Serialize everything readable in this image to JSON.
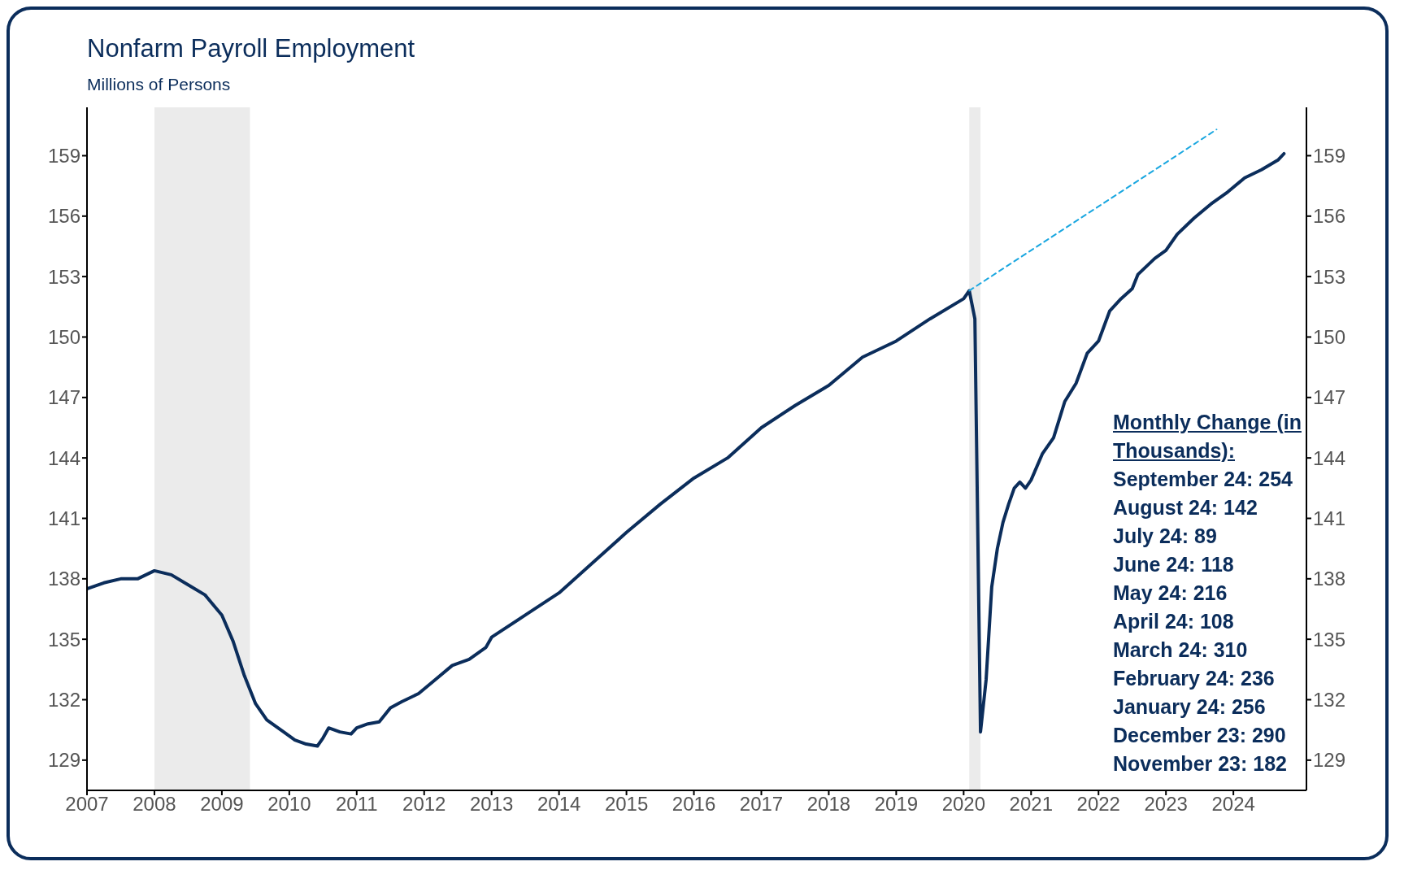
{
  "chart_data": {
    "type": "line",
    "title": "Nonfarm Payroll Employment",
    "subtitle": "Millions of Persons",
    "xlim": [
      "2007-01",
      "2025-02"
    ],
    "xticks": [
      "2007",
      "2008",
      "2009",
      "2010",
      "2011",
      "2012",
      "2013",
      "2014",
      "2015",
      "2016",
      "2017",
      "2018",
      "2019",
      "2020",
      "2021",
      "2022",
      "2023",
      "2024"
    ],
    "ylim": [
      127.5,
      161.4
    ],
    "yticks": [
      129,
      132,
      135,
      138,
      141,
      144,
      147,
      150,
      153,
      156,
      159
    ],
    "y2lim": [
      127.5,
      161.4
    ],
    "y2ticks": [
      129,
      132,
      135,
      138,
      141,
      144,
      147,
      150,
      153,
      156,
      159
    ],
    "grid": false,
    "legend": false,
    "marker": "none",
    "series": [
      {
        "color": "#0b2d5b",
        "line_style": "solid",
        "x": [
          "2007-01",
          "2007-04",
          "2007-07",
          "2007-10",
          "2008-01",
          "2008-04",
          "2008-07",
          "2008-10",
          "2009-01",
          "2009-03",
          "2009-05",
          "2009-07",
          "2009-09",
          "2009-12",
          "2010-02",
          "2010-04",
          "2010-06",
          "2010-07",
          "2010-08",
          "2010-10",
          "2010-12",
          "2011-01",
          "2011-03",
          "2011-05",
          "2011-07",
          "2011-09",
          "2011-12",
          "2012-03",
          "2012-06",
          "2012-09",
          "2012-12",
          "2013-01",
          "2013-07",
          "2014-01",
          "2014-07",
          "2015-01",
          "2015-07",
          "2016-01",
          "2016-07",
          "2017-01",
          "2017-07",
          "2018-01",
          "2018-07",
          "2019-01",
          "2019-07",
          "2020-01",
          "2020-02",
          "2020-03",
          "2020-04",
          "2020-05",
          "2020-06",
          "2020-07",
          "2020-08",
          "2020-09",
          "2020-10",
          "2020-11",
          "2020-12",
          "2021-01",
          "2021-03",
          "2021-05",
          "2021-07",
          "2021-09",
          "2021-11",
          "2022-01",
          "2022-03",
          "2022-05",
          "2022-07",
          "2022-08",
          "2022-11",
          "2023-01",
          "2023-03",
          "2023-06",
          "2023-09",
          "2023-12",
          "2024-03",
          "2024-06",
          "2024-09",
          "2024-10"
        ],
        "values": [
          137.5,
          137.8,
          138.0,
          138.0,
          138.4,
          138.2,
          137.7,
          137.2,
          136.2,
          134.9,
          133.2,
          131.8,
          131.0,
          130.4,
          130.0,
          129.8,
          129.7,
          130.1,
          130.6,
          130.4,
          130.3,
          130.6,
          130.8,
          130.9,
          131.6,
          131.9,
          132.3,
          133.0,
          133.7,
          134.0,
          134.6,
          135.1,
          136.2,
          137.3,
          138.8,
          140.3,
          141.7,
          143.0,
          144.0,
          145.5,
          146.6,
          147.6,
          149.0,
          149.8,
          150.9,
          151.9,
          152.3,
          150.9,
          130.4,
          133.0,
          137.6,
          139.5,
          140.8,
          141.7,
          142.5,
          142.8,
          142.5,
          142.9,
          144.2,
          145.0,
          146.8,
          147.7,
          149.2,
          149.8,
          151.3,
          151.9,
          152.4,
          153.1,
          153.9,
          154.3,
          155.1,
          155.9,
          156.6,
          157.2,
          157.9,
          158.3,
          158.8,
          159.1
        ]
      },
      {
        "type": "line",
        "color": "#1aa7e0",
        "line_style": "dashed",
        "x": [
          "2020-02",
          "2023-10"
        ],
        "values": [
          152.3,
          160.3
        ]
      }
    ],
    "bands": [
      {
        "axis": "x",
        "from": "2008-01",
        "to": "2009-06",
        "color": "#ebebeb"
      },
      {
        "axis": "x",
        "from": "2020-02",
        "to": "2020-04",
        "color": "#ebebeb"
      }
    ],
    "annotations": [
      "Monthly Change (in Thousands):",
      "September 24: 254",
      "August 24: 142",
      "July 24: 89",
      "June 24: 118",
      "May 24: 216",
      "April 24: 108",
      "March 24: 310",
      "February 24: 236",
      "January 24: 256",
      "December 23: 290",
      "November 23: 182"
    ]
  }
}
